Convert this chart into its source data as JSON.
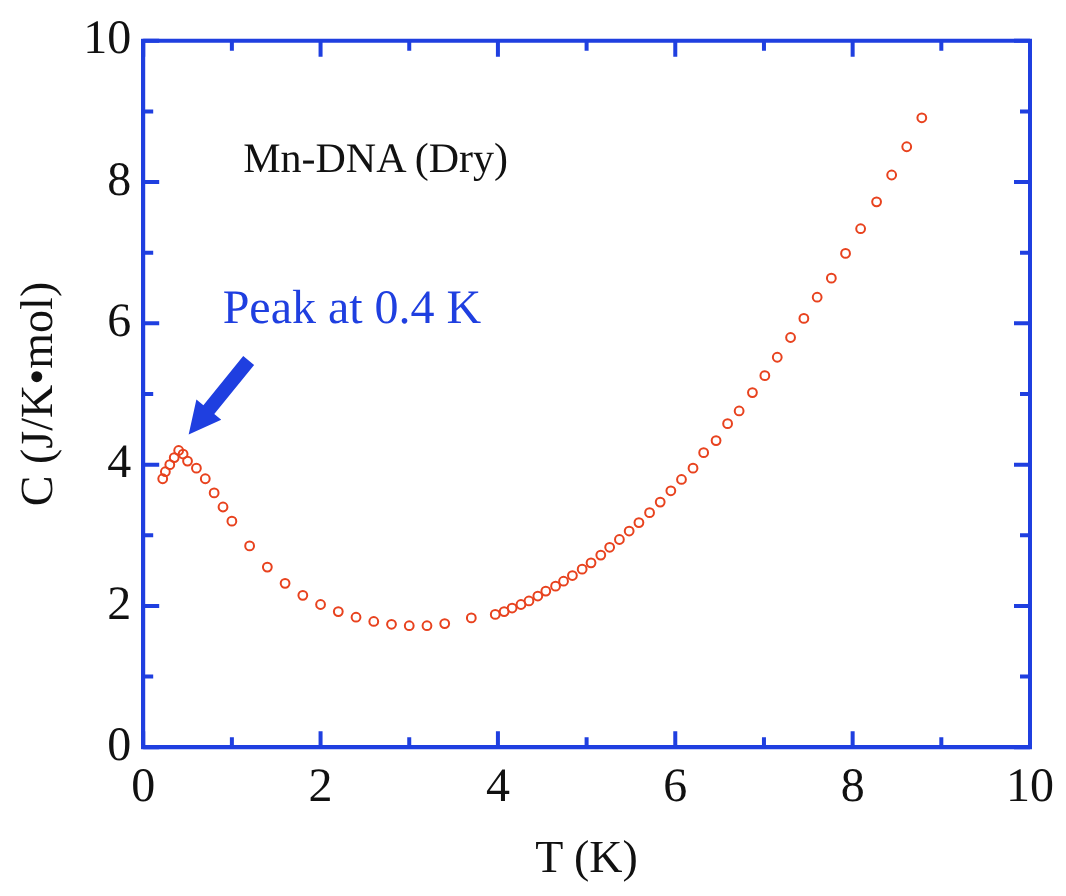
{
  "chart_data": {
    "type": "scatter",
    "xlabel": "T (K)",
    "ylabel": "C (J/K•mol)",
    "annotations": [
      "Mn-DNA (Dry)",
      {
        "text": "Peak at 0.4 K",
        "x": 0.4,
        "y": 4.2
      }
    ],
    "series": [
      {
        "color": "#e8421e",
        "x": [
          0.22,
          0.25,
          0.3,
          0.35,
          0.4,
          0.45,
          0.5,
          0.6,
          0.7,
          0.8,
          0.9,
          1.0,
          1.2,
          1.4,
          1.6,
          1.8,
          2.0,
          2.2,
          2.4,
          2.6,
          2.8,
          3.0,
          3.2,
          3.4,
          3.7,
          3.97,
          4.07,
          4.16,
          4.26,
          4.35,
          4.45,
          4.54,
          4.65,
          4.74,
          4.84,
          4.95,
          5.05,
          5.16,
          5.26,
          5.37,
          5.48,
          5.59,
          5.71,
          5.83,
          5.95,
          6.07,
          6.2,
          6.32,
          6.46,
          6.59,
          6.72,
          6.87,
          7.01,
          7.15,
          7.3,
          7.45,
          7.6,
          7.76,
          7.92,
          8.09,
          8.27,
          8.44,
          8.61,
          8.78
        ],
        "values": [
          3.8,
          3.9,
          4.0,
          4.1,
          4.2,
          4.15,
          4.05,
          3.95,
          3.8,
          3.6,
          3.4,
          3.2,
          2.85,
          2.55,
          2.32,
          2.15,
          2.02,
          1.92,
          1.84,
          1.78,
          1.74,
          1.72,
          1.72,
          1.75,
          1.83,
          1.88,
          1.92,
          1.97,
          2.02,
          2.07,
          2.14,
          2.21,
          2.28,
          2.35,
          2.43,
          2.52,
          2.61,
          2.72,
          2.83,
          2.94,
          3.06,
          3.18,
          3.32,
          3.47,
          3.63,
          3.79,
          3.95,
          4.17,
          4.34,
          4.58,
          4.76,
          5.02,
          5.26,
          5.52,
          5.8,
          6.07,
          6.37,
          6.64,
          6.99,
          7.34,
          7.72,
          8.1,
          8.5,
          8.91
        ]
      }
    ],
    "xlim": [
      0,
      10
    ],
    "ylim": [
      0,
      10
    ],
    "xticks": [
      0,
      {
        "value": 1,
        "label": null
      },
      2,
      {
        "value": 3,
        "label": null
      },
      4,
      {
        "value": 5,
        "label": null
      },
      6,
      {
        "value": 7,
        "label": null
      },
      8,
      {
        "value": 9,
        "label": null
      },
      10
    ],
    "yticks": [
      0,
      {
        "value": 1,
        "label": null
      },
      2,
      {
        "value": 3,
        "label": null
      },
      4,
      {
        "value": 5,
        "label": null
      },
      6,
      {
        "value": 7,
        "label": null
      },
      8,
      {
        "value": 9,
        "label": null
      },
      10
    ],
    "marker": "circle",
    "grid": false,
    "legend": false
  }
}
